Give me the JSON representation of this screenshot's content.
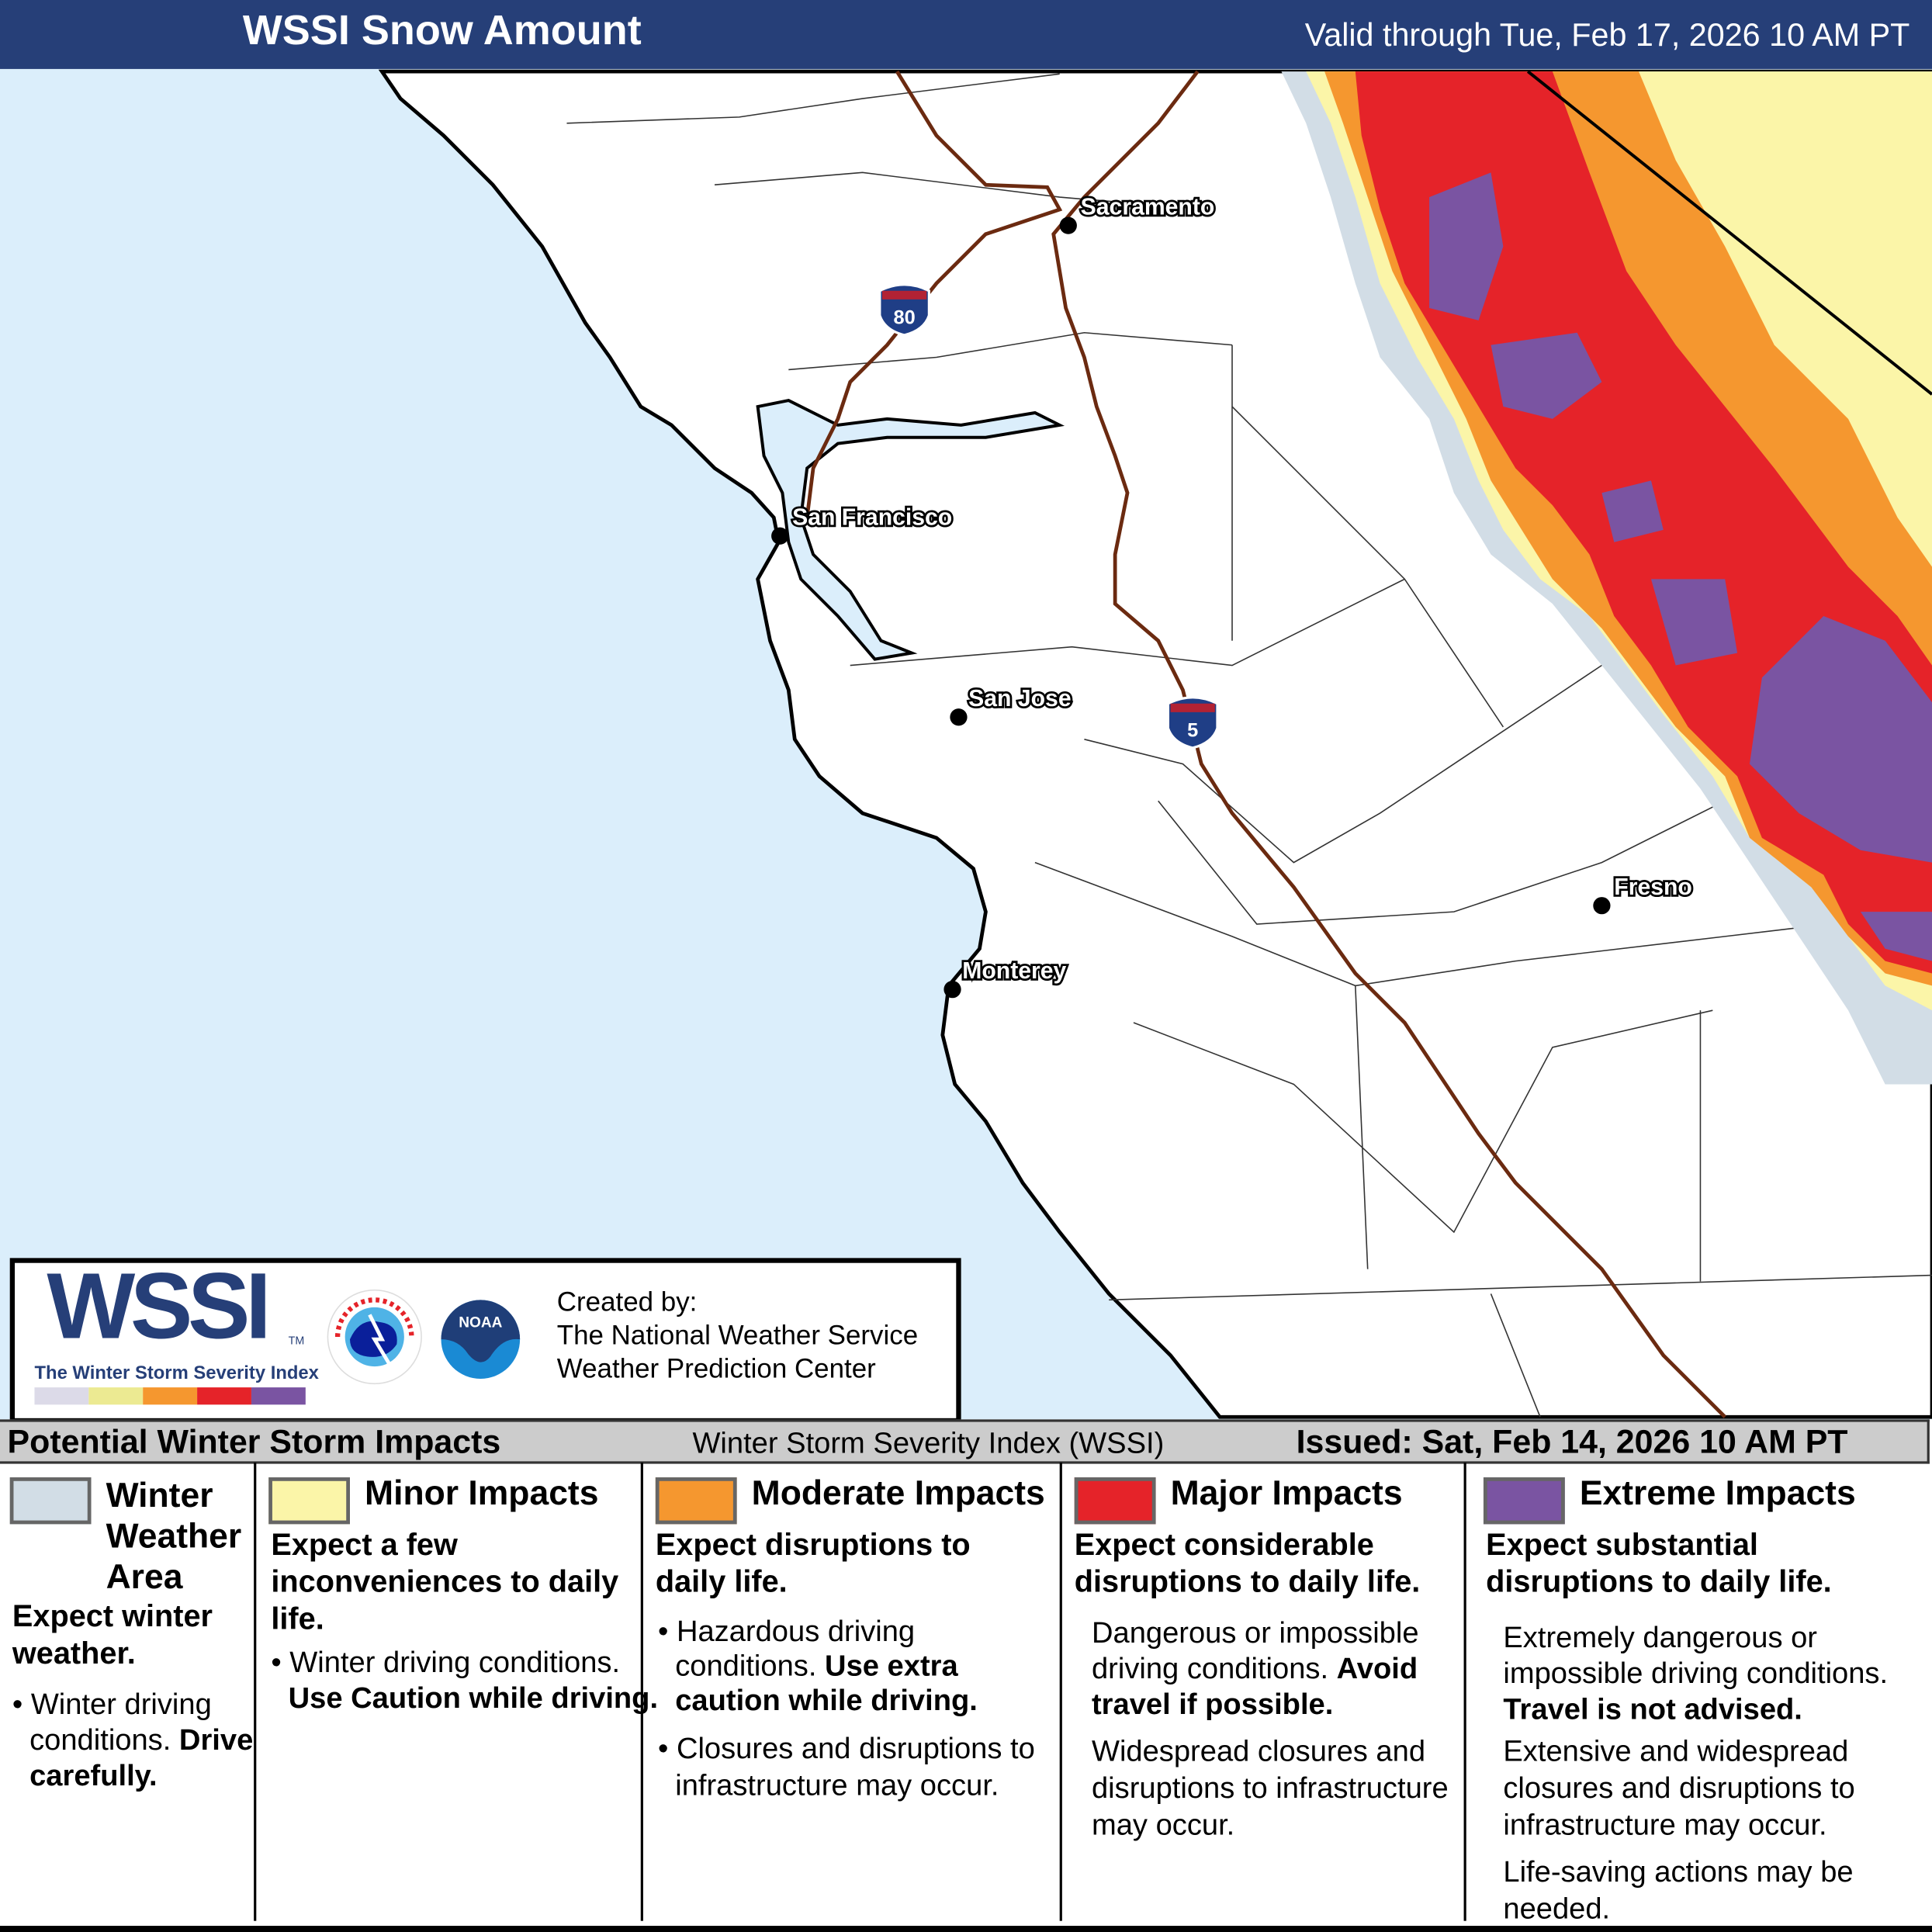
{
  "header": {
    "title": "WSSI Snow Amount",
    "valid": "Valid through Tue, Feb 17, 2026 10 AM PT"
  },
  "map": {
    "colors": {
      "ocean": "#dbeefb",
      "land": "#ffffff",
      "winter": "#d2dde6",
      "minor": "#fbf5a8",
      "moderate": "#f5972f",
      "major": "#e52329",
      "extreme": "#7a54a2",
      "highway": "#6b2a10"
    },
    "cities": [
      {
        "name": "Sacramento"
      },
      {
        "name": "San Francisco"
      },
      {
        "name": "San Jose"
      },
      {
        "name": "Monterey"
      },
      {
        "name": "Fresno"
      }
    ],
    "shields": [
      {
        "label": "80"
      },
      {
        "label": "5"
      }
    ]
  },
  "logo": {
    "wssi": "WSSI",
    "tm": "TM",
    "subtitle": "The Winter Storm Severity Index",
    "created_by": "Created by:",
    "org1": "The National Weather Service",
    "org2": "Weather Prediction Center",
    "nws_text": "NATIONAL WEATHER SERVICE",
    "noaa_text": "NOAA"
  },
  "legend": {
    "left": "Potential Winter Storm Impacts",
    "mid": "Winter Storm Severity Index (WSSI)",
    "issued": "Issued: Sat, Feb 14, 2026 10 AM PT",
    "categories": [
      {
        "title": "Winter Weather Area",
        "color": "#d2dde6",
        "headline": "Expect winter weather.",
        "bullet1": "Winter driving conditions.",
        "bullet1_bold": "Drive carefully."
      },
      {
        "title": "Minor Impacts",
        "color": "#fbf5a8",
        "headline": "Expect a few inconveniences to daily life.",
        "bullet1": "Winter driving conditions.",
        "bullet1_bold": "Use Caution while driving."
      },
      {
        "title": "Moderate Impacts",
        "color": "#f5972f",
        "headline": "Expect disruptions to daily life.",
        "bullet1": "Hazardous driving conditions.",
        "bullet1_bold": "Use extra caution while driving.",
        "bullet2": "Closures and disruptions to infrastructure may occur."
      },
      {
        "title": "Major Impacts",
        "color": "#e52329",
        "headline": "Expect considerable disruptions to daily life.",
        "bullet1": "Dangerous or impossible driving conditions.",
        "bullet1_bold": "Avoid travel if possible.",
        "bullet2": "Widespread closures and disruptions to infrastructure may occur."
      },
      {
        "title": "Extreme Impacts",
        "color": "#7a54a2",
        "headline": "Expect substantial disruptions to daily life.",
        "bullet1": "Extremely dangerous or impossible driving conditions.",
        "bullet1_bold": "Travel is not advised.",
        "bullet2": "Extensive and widespread closures and disruptions to infrastructure may occur.",
        "bullet3": "Life-saving actions may be needed."
      }
    ]
  }
}
